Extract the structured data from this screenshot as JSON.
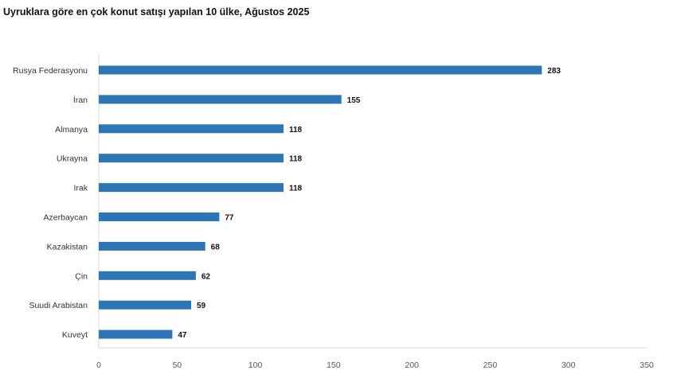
{
  "chart_data": {
    "type": "bar",
    "orientation": "horizontal",
    "title": "Uyruklara göre en çok konut satışı yapılan 10 ülke, Ağustos 2025",
    "categories": [
      "Rusya Federasyonu",
      "İran",
      "Almanya",
      "Ukrayna",
      "Irak",
      "Azerbaycan",
      "Kazakistan",
      "Çin",
      "Suudi Arabistan",
      "Kuveyt"
    ],
    "values": [
      283,
      155,
      118,
      118,
      118,
      77,
      68,
      62,
      59,
      47
    ],
    "xlabel": "",
    "ylabel": "",
    "xlim": [
      0,
      350
    ],
    "x_ticks": [
      0,
      50,
      100,
      150,
      200,
      250,
      300,
      350
    ],
    "grid": false,
    "legend": "none",
    "bar_color": "#2e75b6",
    "data_labels": true
  }
}
